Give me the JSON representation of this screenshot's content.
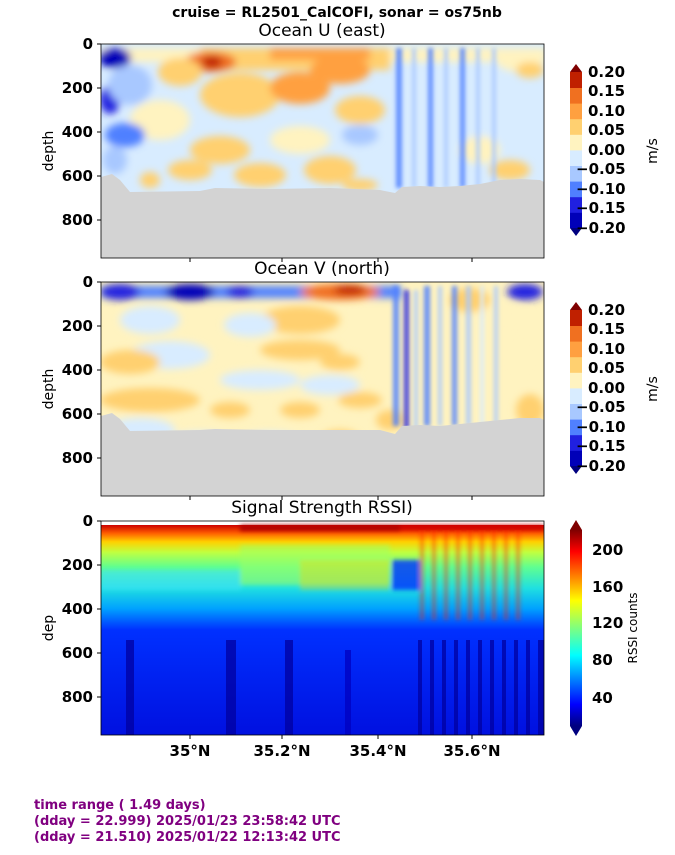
{
  "suptitle": "cruise = RL2501_CalCOFI,  sonar = os75nb",
  "colors": {
    "land": "#d3d3d3",
    "footer_text": "#800080"
  },
  "footer": {
    "line1": "time range ( 1.49 days)",
    "line2": "(dday = 22.999) 2025/01/23 23:58:42 UTC",
    "line3": "(dday = 21.510) 2025/01/22 12:13:42 UTC"
  },
  "chart_data": [
    {
      "type": "heatmap",
      "title": "Ocean U (east)",
      "ylabel": "depth",
      "y_ticks": [
        "0",
        "200",
        "400",
        "600",
        "800"
      ],
      "ylim": [
        0,
        970
      ],
      "xlim": [
        34.83,
        35.76
      ],
      "x_ticks": [],
      "colorbar": {
        "label": "m/s",
        "ticks": [
          "0.20",
          "0.15",
          "0.10",
          "0.05",
          "0.00",
          "−0.05",
          "−0.10",
          "−0.15",
          "−0.20"
        ],
        "levels": [
          -0.2,
          -0.15,
          -0.1,
          -0.05,
          0.0,
          0.05,
          0.1,
          0.15,
          0.2
        ],
        "colors": [
          "#0000b8",
          "#2020e0",
          "#5080ff",
          "#a8c8ff",
          "#d8ecff",
          "#fff3c0",
          "#ffd070",
          "#ffa040",
          "#f07020",
          "#c02000"
        ]
      },
      "approx_values_by_region": [
        {
          "x_range": [
            34.83,
            34.9
          ],
          "depth_range": [
            30,
            120
          ],
          "value": -0.2
        },
        {
          "x_range": [
            34.83,
            34.9
          ],
          "depth_range": [
            220,
            320
          ],
          "value": -0.15
        },
        {
          "x_range": [
            35.0,
            35.4
          ],
          "depth_range": [
            30,
            110
          ],
          "value": 0.12
        },
        {
          "x_range": [
            35.05,
            35.1
          ],
          "depth_range": [
            50,
            100
          ],
          "value": 0.2
        },
        {
          "x_range": [
            35.0,
            35.4
          ],
          "depth_range": [
            120,
            600
          ],
          "value": 0.03
        },
        {
          "x_range": [
            35.42,
            35.76
          ],
          "depth_range": [
            30,
            620
          ],
          "value": -0.03
        }
      ],
      "bottom_depth_range": [
        600,
        690
      ]
    },
    {
      "type": "heatmap",
      "title": "Ocean V (north)",
      "ylabel": "depth",
      "y_ticks": [
        "0",
        "200",
        "400",
        "600",
        "800"
      ],
      "ylim": [
        0,
        970
      ],
      "xlim": [
        34.83,
        35.76
      ],
      "x_ticks": [],
      "colorbar": {
        "label": "m/s",
        "ticks": [
          "0.20",
          "0.15",
          "0.10",
          "0.05",
          "0.00",
          "−0.05",
          "−0.10",
          "−0.15",
          "−0.20"
        ],
        "levels": [
          -0.2,
          -0.15,
          -0.1,
          -0.05,
          0.0,
          0.05,
          0.1,
          0.15,
          0.2
        ],
        "colors": [
          "#0000b8",
          "#2020e0",
          "#5080ff",
          "#a8c8ff",
          "#d8ecff",
          "#fff3c0",
          "#ffd070",
          "#ffa040",
          "#f07020",
          "#c02000"
        ]
      },
      "approx_values_by_region": [
        {
          "x_range": [
            34.83,
            35.2
          ],
          "depth_range": [
            30,
            80
          ],
          "value": -0.15
        },
        {
          "x_range": [
            35.3,
            35.42
          ],
          "depth_range": [
            30,
            80
          ],
          "value": 0.15
        },
        {
          "x_range": [
            34.83,
            35.4
          ],
          "depth_range": [
            300,
            420
          ],
          "value": 0.06
        },
        {
          "x_range": [
            35.42,
            35.76
          ],
          "depth_range": [
            30,
            620
          ],
          "value": -0.05
        }
      ],
      "bottom_depth_range": [
        600,
        690
      ]
    },
    {
      "type": "heatmap",
      "title": "Signal Strength RSSI)",
      "ylabel": "dep",
      "y_ticks": [
        "0",
        "200",
        "400",
        "600",
        "800"
      ],
      "ylim": [
        0,
        970
      ],
      "xlim": [
        34.83,
        35.76
      ],
      "x_ticks": [
        "35°N",
        "35.2°N",
        "35.4°N",
        "35.6°N"
      ],
      "colorbar": {
        "label": "RSSI counts",
        "ticks": [
          "200",
          "160",
          "120",
          "80",
          "40"
        ],
        "range": [
          10,
          220
        ],
        "colormap": "jet"
      },
      "profile_depth_vs_rssi": [
        {
          "depth": 20,
          "rssi": 215
        },
        {
          "depth": 80,
          "rssi": 165
        },
        {
          "depth": 150,
          "rssi": 125
        },
        {
          "depth": 250,
          "rssi": 100
        },
        {
          "depth": 350,
          "rssi": 80
        },
        {
          "depth": 450,
          "rssi": 65
        },
        {
          "depth": 550,
          "rssi": 45
        },
        {
          "depth": 700,
          "rssi": 35
        },
        {
          "depth": 960,
          "rssi": 30
        }
      ]
    }
  ]
}
